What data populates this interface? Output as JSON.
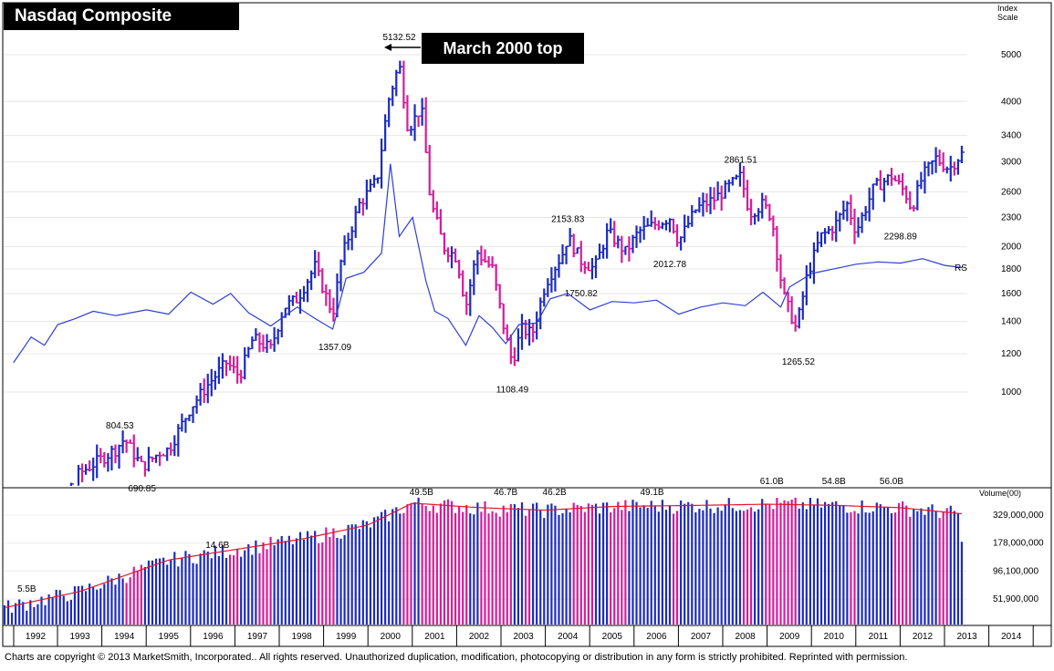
{
  "title": "Nasdaq Composite",
  "callout": "March 2000 top",
  "axis_unit": [
    "Index",
    "Scale"
  ],
  "volume_label": "Volume(00)",
  "rs_label": "RS",
  "footer": "Charts are copyright © 2013 MarketSmith, Incorporated..  All rights reserved.  Unauthorized duplication, modification, photocopying or distribution in any form is strictly prohibited. Reprinted with permission.",
  "colors": {
    "up": "#1c2bbf",
    "down": "#d51c9a",
    "rs": "#2e3ed9",
    "ma": "#e0182a"
  },
  "chart_data": [
    {
      "type": "ohlc",
      "title": "Nasdaq Composite",
      "scale": "log",
      "x": [
        "1992",
        "1993",
        "1994",
        "1995",
        "1996",
        "1997",
        "1998",
        "1999",
        "2000",
        "2001",
        "2002",
        "2003",
        "2004",
        "2005",
        "2006",
        "2007",
        "2008",
        "2009",
        "2010",
        "2011",
        "2012",
        "2013",
        "2014"
      ],
      "y_ticks": [
        1000,
        1200,
        1400,
        1600,
        1800,
        2000,
        2300,
        2600,
        3000,
        3400,
        4000,
        5000
      ],
      "annotations": [
        {
          "label": "804.53",
          "x": 1993.9,
          "y": 804.53
        },
        {
          "label": "690.85",
          "x": 1994.4,
          "y": 690.85
        },
        {
          "label": "1357.09",
          "x": 1998.75,
          "y": 1357.09
        },
        {
          "label": "5132.52",
          "x": 2000.2,
          "y": 5132.52
        },
        {
          "label": "1108.49",
          "x": 2002.75,
          "y": 1108.49
        },
        {
          "label": "2153.83",
          "x": 2004.0,
          "y": 2153.83
        },
        {
          "label": "1750.82",
          "x": 2004.3,
          "y": 1750.82
        },
        {
          "label": "2012.78",
          "x": 2006.3,
          "y": 2012.78
        },
        {
          "label": "2861.51",
          "x": 2007.9,
          "y": 2861.51
        },
        {
          "label": "1265.52",
          "x": 2009.2,
          "y": 1265.52
        },
        {
          "label": "2298.89",
          "x": 2011.5,
          "y": 2298.89
        }
      ],
      "series": [
        {
          "name": "RS",
          "points": [
            [
              1991.5,
              1150
            ],
            [
              1991.9,
              1300
            ],
            [
              1992.2,
              1250
            ],
            [
              1992.5,
              1380
            ],
            [
              1992.9,
              1420
            ],
            [
              1993.3,
              1470
            ],
            [
              1993.8,
              1440
            ],
            [
              1994.5,
              1480
            ],
            [
              1995.0,
              1450
            ],
            [
              1995.5,
              1610
            ],
            [
              1996.0,
              1520
            ],
            [
              1996.4,
              1600
            ],
            [
              1996.8,
              1460
            ],
            [
              1997.3,
              1370
            ],
            [
              1997.9,
              1500
            ],
            [
              1998.3,
              1420
            ],
            [
              1998.7,
              1350
            ],
            [
              1999.0,
              1720
            ],
            [
              1999.4,
              1770
            ],
            [
              1999.8,
              1940
            ],
            [
              2000.0,
              2970
            ],
            [
              2000.2,
              2100
            ],
            [
              2000.5,
              2300
            ],
            [
              2000.8,
              1700
            ],
            [
              2001.0,
              1470
            ],
            [
              2001.3,
              1420
            ],
            [
              2001.7,
              1250
            ],
            [
              2002.0,
              1440
            ],
            [
              2002.3,
              1360
            ],
            [
              2002.6,
              1260
            ],
            [
              2002.9,
              1380
            ],
            [
              2003.3,
              1390
            ],
            [
              2003.6,
              1560
            ],
            [
              2004.0,
              1600
            ],
            [
              2004.5,
              1480
            ],
            [
              2005.0,
              1540
            ],
            [
              2005.5,
              1530
            ],
            [
              2006.0,
              1550
            ],
            [
              2006.5,
              1450
            ],
            [
              2007.0,
              1500
            ],
            [
              2007.5,
              1530
            ],
            [
              2008.0,
              1510
            ],
            [
              2008.4,
              1610
            ],
            [
              2008.8,
              1500
            ],
            [
              2009.0,
              1650
            ],
            [
              2009.5,
              1760
            ],
            [
              2010.0,
              1800
            ],
            [
              2010.5,
              1840
            ],
            [
              2011.0,
              1860
            ],
            [
              2011.5,
              1850
            ],
            [
              2012.0,
              1890
            ],
            [
              2012.5,
              1830
            ],
            [
              2012.9,
              1810
            ]
          ]
        },
        {
          "name": "Volume",
          "unit": "shares (00)",
          "y_ticks": [
            51900000,
            96100000,
            178000000,
            329000000
          ],
          "annotations": [
            {
              "label": "5.5B",
              "x": 1991.8
            },
            {
              "label": "14.6B",
              "x": 1996.1
            },
            {
              "label": "49.5B",
              "x": 2000.7
            },
            {
              "label": "46.7B",
              "x": 2002.6
            },
            {
              "label": "46.2B",
              "x": 2003.7
            },
            {
              "label": "49.1B",
              "x": 2005.9
            },
            {
              "label": "61.0B",
              "x": 2008.6
            },
            {
              "label": "54.8B",
              "x": 2010.0
            },
            {
              "label": "56.0B",
              "x": 2011.3
            }
          ]
        }
      ]
    }
  ]
}
